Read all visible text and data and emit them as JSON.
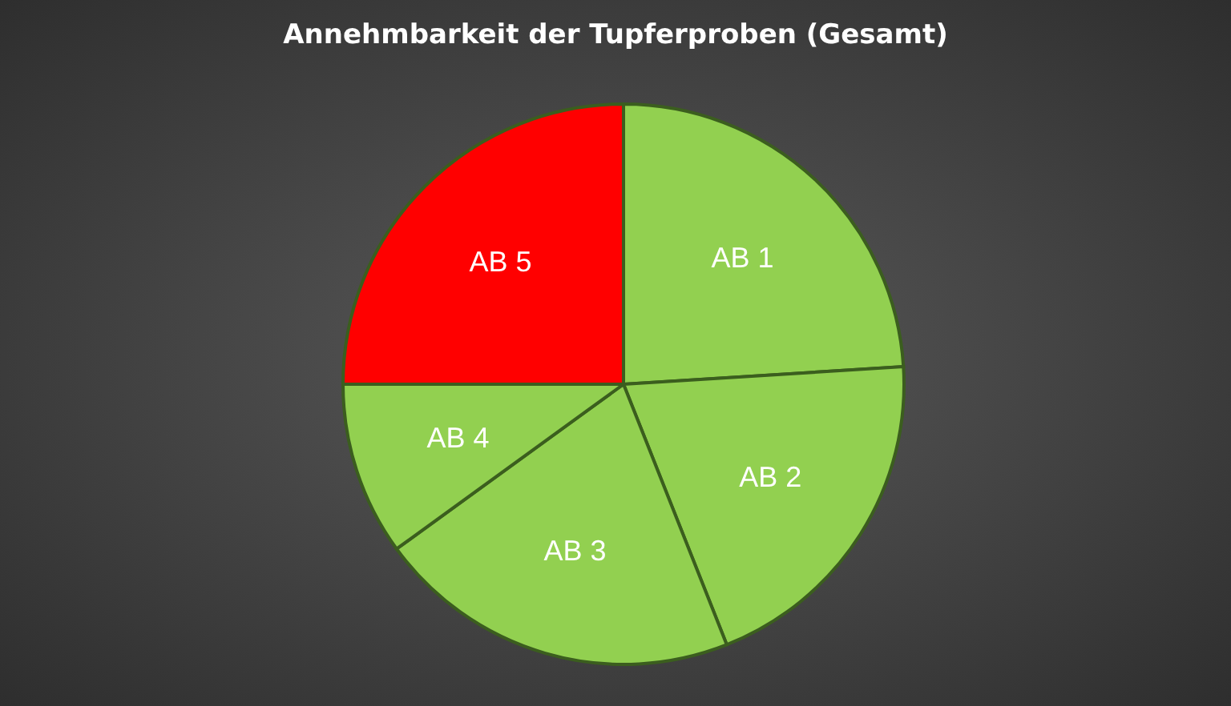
{
  "chart_data": {
    "type": "pie",
    "title": "Annehmbarkeit der Tupferproben (Gesamt)",
    "categories": [
      "AB 1",
      "AB 2",
      "AB 3",
      "AB 4",
      "AB 5"
    ],
    "values": [
      24,
      20,
      21,
      10,
      25
    ],
    "colors": [
      "#92d050",
      "#92d050",
      "#92d050",
      "#92d050",
      "#ff0000"
    ],
    "legend": false
  }
}
